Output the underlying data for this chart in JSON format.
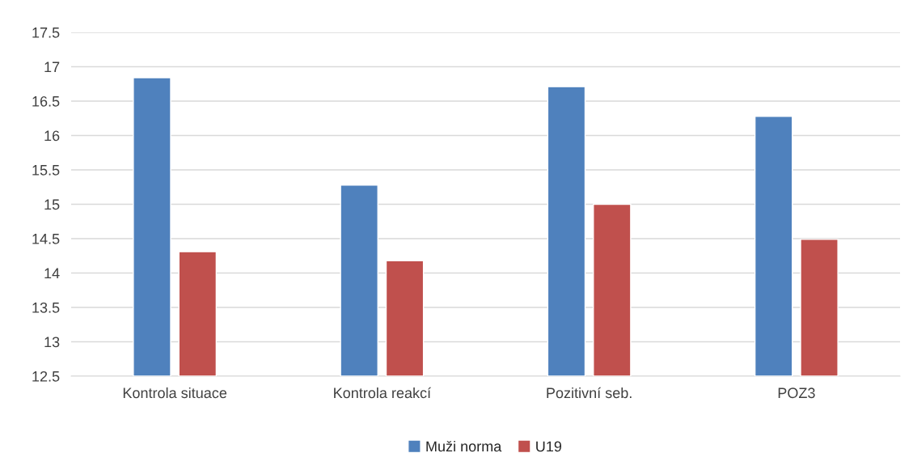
{
  "chart_data": {
    "type": "bar",
    "categories": [
      "Kontrola situace",
      "Kontrola reakcí",
      "Pozitivní seb.",
      "POZ3"
    ],
    "series": [
      {
        "name": "Muži norma",
        "color": "#4f81bd",
        "values": [
          16.84,
          15.28,
          16.71,
          16.28
        ]
      },
      {
        "name": "U19",
        "color": "#c0504d",
        "values": [
          14.31,
          14.18,
          15.0,
          14.49
        ]
      }
    ],
    "ylim": [
      12.5,
      17.5
    ],
    "yticks": [
      12.5,
      13,
      13.5,
      14,
      14.5,
      15,
      15.5,
      16,
      16.5,
      17,
      17.5
    ],
    "grid": "y",
    "legend": "bottom"
  }
}
